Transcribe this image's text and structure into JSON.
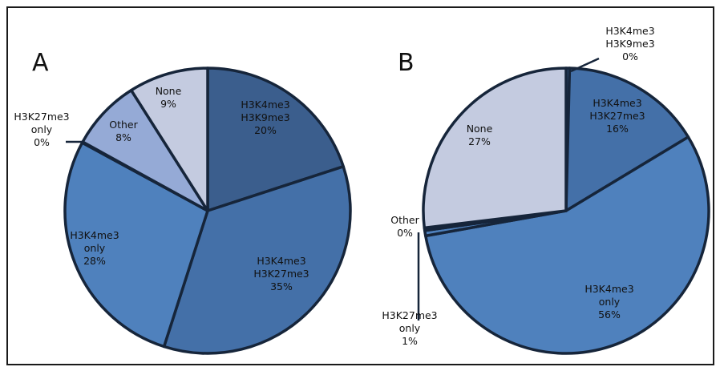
{
  "colors": {
    "outline": "#16253a",
    "dark_blue": "#3b5e8d",
    "mid_blue": "#4470a8",
    "bright_blue": "#4f81bd",
    "light_blue": "#95aad6",
    "pale_blue": "#c4cbe0"
  },
  "chart_data": [
    {
      "type": "pie",
      "panel": "A",
      "slices": [
        {
          "label": [
            "H3K4me3",
            "H3K9me3",
            "20%"
          ],
          "value": 20,
          "color": "#3b5e8d"
        },
        {
          "label": [
            "H3K4me3",
            "H3K27me3",
            "35%"
          ],
          "value": 35,
          "color": "#4470a8"
        },
        {
          "label": [
            "H3K4me3",
            "only",
            "28%"
          ],
          "value": 28,
          "color": "#4f81bd"
        },
        {
          "label": [
            "H3K27me3",
            "only",
            "0%"
          ],
          "value": 0.1,
          "color": "#4f81bd"
        },
        {
          "label": [
            "Other",
            "8%"
          ],
          "value": 8,
          "color": "#95aad6"
        },
        {
          "label": [
            "None",
            "9%"
          ],
          "value": 9,
          "color": "#c4cbe0"
        }
      ]
    },
    {
      "type": "pie",
      "panel": "B",
      "slices": [
        {
          "label": [
            "H3K4me3",
            "H3K9me3",
            "0%"
          ],
          "value": 0.4,
          "color": "#3b5e8d"
        },
        {
          "label": [
            "H3K4me3",
            "H3K27me3",
            "16%"
          ],
          "value": 16,
          "color": "#4470a8"
        },
        {
          "label": [
            "H3K4me3",
            "only",
            "56%"
          ],
          "value": 56,
          "color": "#4f81bd"
        },
        {
          "label": [
            "H3K27me3",
            "only",
            "1%"
          ],
          "value": 0.6,
          "color": "#4f81bd"
        },
        {
          "label": [
            "Other",
            "0%"
          ],
          "value": 0.3,
          "color": "#95aad6"
        },
        {
          "label": [
            "None",
            "27%"
          ],
          "value": 27,
          "color": "#c4cbe0"
        }
      ]
    }
  ]
}
